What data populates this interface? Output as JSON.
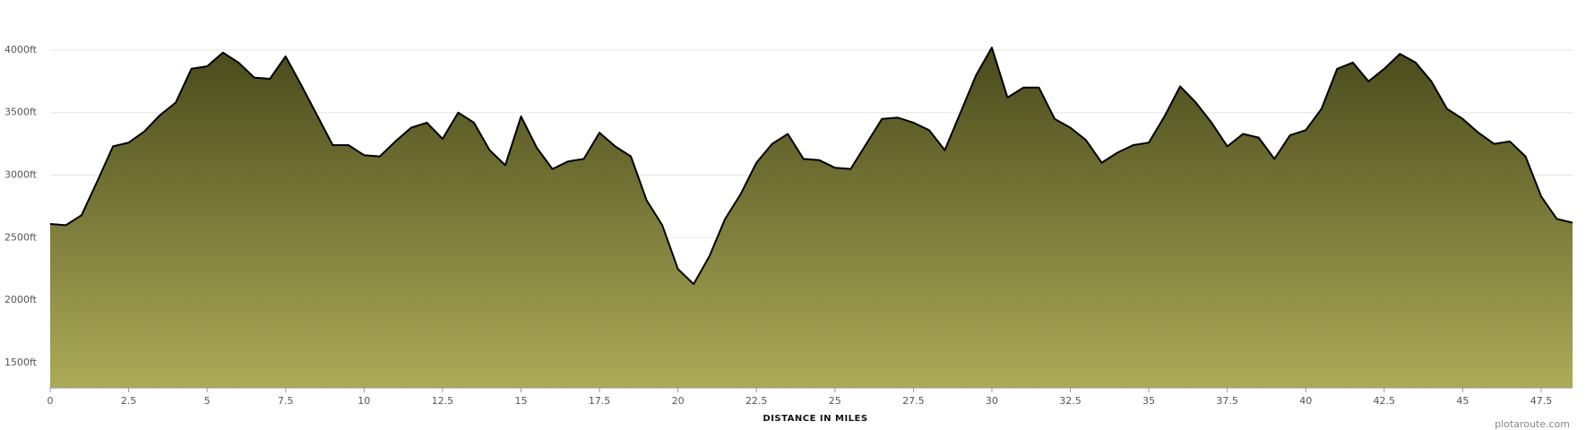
{
  "chart_data": {
    "type": "area",
    "x_label": "DISTANCE IN MILES",
    "credit": "plotaroute.com",
    "series": [
      {
        "color": "#000000",
        "fill_top": "#4a4a1c",
        "fill_bottom": "#acab58",
        "x": [
          0,
          0.5,
          1,
          1.5,
          2,
          2.5,
          3,
          3.5,
          4,
          4.5,
          5,
          5.5,
          6,
          6.5,
          7,
          7.5,
          8,
          8.5,
          9,
          9.5,
          10,
          10.5,
          11,
          11.5,
          12,
          12.5,
          13,
          13.5,
          14,
          14.5,
          15,
          15.5,
          16,
          16.5,
          17,
          17.5,
          18,
          18.5,
          19,
          19.5,
          20,
          20.5,
          21,
          21.5,
          22,
          22.5,
          23,
          23.5,
          24,
          24.5,
          25,
          25.5,
          26,
          26.5,
          27,
          27.5,
          28,
          28.5,
          29,
          29.5,
          30,
          30.5,
          31,
          31.5,
          32,
          32.5,
          33,
          33.5,
          34,
          34.5,
          35,
          35.5,
          36,
          36.5,
          37,
          37.5,
          38,
          38.5,
          39,
          39.5,
          40,
          40.5,
          41,
          41.5,
          42,
          42.5,
          43,
          43.5,
          44,
          44.5,
          45,
          45.5,
          46,
          46.5,
          47,
          47.5,
          48,
          48.5
        ],
        "values": [
          2610,
          2600,
          2680,
          2950,
          3230,
          3260,
          3350,
          3480,
          3580,
          3850,
          3870,
          3980,
          3900,
          3780,
          3770,
          3950,
          3720,
          3480,
          3240,
          3240,
          3160,
          3150,
          3270,
          3380,
          3420,
          3290,
          3500,
          3420,
          3200,
          3080,
          3470,
          3220,
          3050,
          3110,
          3130,
          3340,
          3230,
          3150,
          2800,
          2600,
          2250,
          2130,
          2350,
          2650,
          2850,
          3100,
          3250,
          3330,
          3130,
          3120,
          3060,
          3050,
          3250,
          3450,
          3460,
          3420,
          3360,
          3200,
          3500,
          3800,
          4020,
          3620,
          3700,
          3700,
          3450,
          3380,
          3280,
          3100,
          3180,
          3240,
          3260,
          3470,
          3710,
          3580,
          3420,
          3230,
          3330,
          3300,
          3130,
          3320,
          3360,
          3530,
          3850,
          3900,
          3750,
          3850,
          3970,
          3900,
          3750,
          3530,
          3450,
          3340,
          3250,
          3270,
          3150,
          2830,
          2650,
          2620
        ]
      }
    ],
    "xlim": [
      0,
      48.5
    ],
    "xticks": [
      0,
      2.5,
      5,
      7.5,
      10,
      12.5,
      15,
      17.5,
      20,
      22.5,
      25,
      27.5,
      30,
      32.5,
      35,
      37.5,
      40,
      42.5,
      45,
      47.5
    ],
    "ylim": [
      1300,
      4400
    ],
    "yticks": [
      {
        "value": 1500,
        "label": "1500ft"
      },
      {
        "value": 2000,
        "label": "2000ft"
      },
      {
        "value": 2500,
        "label": "2500ft"
      },
      {
        "value": 3000,
        "label": "3000ft"
      },
      {
        "value": 3500,
        "label": "3500ft"
      },
      {
        "value": 4000,
        "label": "4000ft"
      }
    ],
    "grid": true
  }
}
